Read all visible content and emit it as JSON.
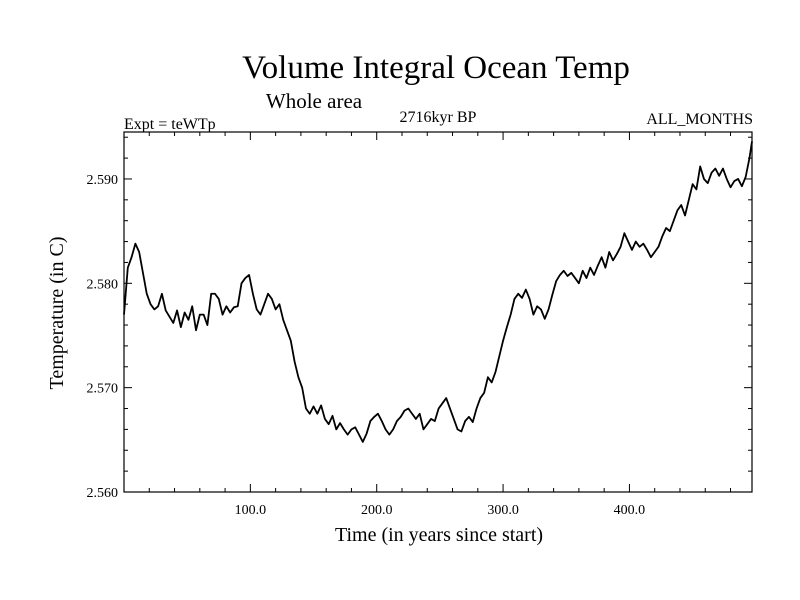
{
  "chart_data": {
    "type": "line",
    "title": "Volume Integral Ocean Temp",
    "subtitle": "Whole area",
    "left_label": "Expt = teWTp",
    "center_label": "2716kyr BP",
    "right_label": "ALL_MONTHS",
    "xlabel": "Time (in years since start)",
    "ylabel": "Temperature (in C)",
    "xlim": [
      0,
      497
    ],
    "ylim": [
      2.56,
      2.5945
    ],
    "x_ticks": [
      100,
      200,
      300,
      400
    ],
    "x_tick_labels": [
      "100.0",
      "200.0",
      "300.0",
      "400.0"
    ],
    "y_ticks": [
      2.56,
      2.57,
      2.58,
      2.59
    ],
    "y_tick_labels": [
      "2.560",
      "2.570",
      "2.580",
      "2.590"
    ],
    "grid": false,
    "series": [
      {
        "name": "Volume Integral Ocean Temp",
        "color": "#000000",
        "x": [
          0,
          3,
          6,
          9,
          12,
          15,
          18,
          21,
          24,
          27,
          30,
          33,
          36,
          39,
          42,
          45,
          48,
          51,
          54,
          57,
          60,
          63,
          66,
          69,
          72,
          75,
          78,
          81,
          84,
          87,
          90,
          93,
          96,
          99,
          102,
          105,
          108,
          111,
          114,
          117,
          120,
          123,
          126,
          129,
          132,
          135,
          138,
          141,
          144,
          147,
          150,
          153,
          156,
          159,
          162,
          165,
          168,
          171,
          174,
          177,
          180,
          183,
          186,
          189,
          192,
          195,
          198,
          201,
          204,
          207,
          210,
          213,
          216,
          219,
          222,
          225,
          228,
          231,
          234,
          237,
          240,
          243,
          246,
          249,
          252,
          255,
          258,
          261,
          264,
          267,
          270,
          273,
          276,
          279,
          282,
          285,
          288,
          291,
          294,
          297,
          300,
          303,
          306,
          309,
          312,
          315,
          318,
          321,
          324,
          327,
          330,
          333,
          336,
          339,
          342,
          345,
          348,
          351,
          354,
          357,
          360,
          363,
          366,
          369,
          372,
          375,
          378,
          381,
          384,
          387,
          390,
          393,
          396,
          399,
          402,
          405,
          408,
          411,
          414,
          417,
          420,
          423,
          426,
          429,
          432,
          435,
          438,
          441,
          444,
          447,
          450,
          453,
          456,
          459,
          462,
          465,
          468,
          471,
          474,
          477,
          480,
          483,
          486,
          489,
          492,
          495,
          497
        ],
        "values": [
          2.577,
          2.5815,
          2.5825,
          2.5838,
          2.583,
          2.581,
          2.579,
          2.578,
          2.5775,
          2.5778,
          2.579,
          2.5774,
          2.5768,
          2.5762,
          2.5774,
          2.5758,
          2.5772,
          2.5765,
          2.5778,
          2.5755,
          2.577,
          2.577,
          2.576,
          2.579,
          2.579,
          2.5785,
          2.577,
          2.5778,
          2.5772,
          2.5777,
          2.5778,
          2.58,
          2.5805,
          2.5808,
          2.579,
          2.5775,
          2.577,
          2.578,
          2.579,
          2.5785,
          2.5775,
          2.578,
          2.5765,
          2.5755,
          2.5745,
          2.5725,
          2.571,
          2.57,
          2.568,
          2.5675,
          2.5682,
          2.5675,
          2.5683,
          2.567,
          2.5665,
          2.5673,
          2.566,
          2.5666,
          2.566,
          2.5655,
          2.566,
          2.5662,
          2.5655,
          2.5648,
          2.5656,
          2.5668,
          2.5672,
          2.5675,
          2.5668,
          2.566,
          2.5655,
          2.566,
          2.5668,
          2.5672,
          2.5678,
          2.568,
          2.5675,
          2.567,
          2.5675,
          2.566,
          2.5665,
          2.567,
          2.5668,
          2.568,
          2.5685,
          2.569,
          2.568,
          2.567,
          2.566,
          2.5658,
          2.5668,
          2.5672,
          2.5667,
          2.568,
          2.569,
          2.5695,
          2.571,
          2.5705,
          2.5715,
          2.573,
          2.5745,
          2.5758,
          2.577,
          2.5785,
          2.579,
          2.5786,
          2.5794,
          2.5785,
          2.577,
          2.5778,
          2.5775,
          2.5766,
          2.5775,
          2.5789,
          2.5802,
          2.5808,
          2.5812,
          2.5807,
          2.581,
          2.5805,
          2.58,
          2.5812,
          2.5805,
          2.5815,
          2.5808,
          2.5817,
          2.5825,
          2.5815,
          2.583,
          2.5822,
          2.5828,
          2.5835,
          2.5848,
          2.584,
          2.5832,
          2.584,
          2.5835,
          2.5838,
          2.5832,
          2.5825,
          2.583,
          2.5835,
          2.5845,
          2.5853,
          2.585,
          2.586,
          2.587,
          2.5875,
          2.5865,
          2.588,
          2.5895,
          2.589,
          2.5912,
          2.59,
          2.5896,
          2.5906,
          2.591,
          2.5903,
          2.591,
          2.59,
          2.5892,
          2.5898,
          2.59,
          2.5893,
          2.5902,
          2.592,
          2.5936
        ]
      }
    ]
  }
}
